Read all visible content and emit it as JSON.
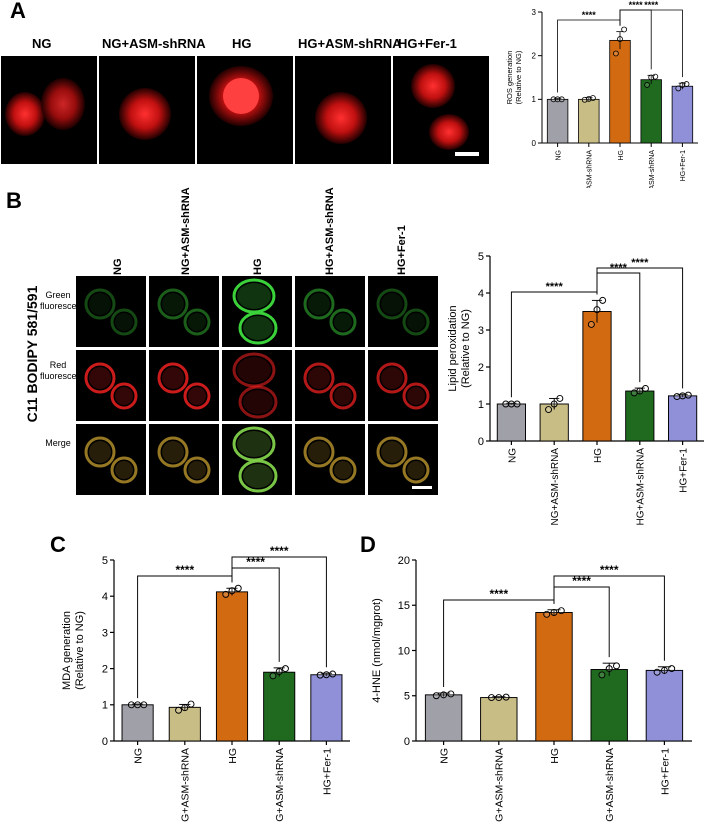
{
  "panels": {
    "a": "A",
    "b": "B",
    "c": "C",
    "d": "D"
  },
  "groups": [
    "NG",
    "NG+ASM-shRNA",
    "HG",
    "HG+ASM-shRNA",
    "HG+Fer-1"
  ],
  "colors": {
    "NG": "#a0a0a8",
    "NG+ASM-shRNA": "#c9bd86",
    "HG": "#d26a12",
    "HG+ASM-shRNA": "#1f6a1f",
    "HG+Fer-1": "#8f90d8",
    "red_fluor": "#ff2222",
    "green_fluor": "#3ad13a"
  },
  "panel_b": {
    "side_label": "C11 BODIPY 581/591",
    "rows": [
      "Green fluorescence",
      "Red fluorescence",
      "Merge"
    ]
  },
  "significance": "****",
  "chart_data": [
    {
      "id": "A",
      "type": "bar",
      "categories": [
        "NG",
        "NG+ASM-shRNA",
        "HG",
        "HG+ASM-shRNA",
        "HG+Fer-1"
      ],
      "values": [
        1.0,
        1.0,
        2.35,
        1.45,
        1.3
      ],
      "errors": [
        0.02,
        0.04,
        0.2,
        0.1,
        0.07
      ],
      "points": [
        [
          1.0,
          1.0,
          1.0
        ],
        [
          0.99,
          1.01,
          1.03
        ],
        [
          2.05,
          2.38,
          2.6
        ],
        [
          1.33,
          1.5,
          1.52
        ],
        [
          1.25,
          1.33,
          1.35
        ]
      ],
      "ylabel": "ROS generation\n(Relative to NG)",
      "ylim": [
        0,
        3
      ],
      "yticks": [
        0,
        1,
        2,
        3
      ],
      "brackets": [
        [
          "NG",
          "HG",
          "****"
        ],
        [
          "HG",
          "HG+ASM-shRNA",
          "****"
        ],
        [
          "HG",
          "HG+Fer-1",
          "****"
        ]
      ]
    },
    {
      "id": "B",
      "type": "bar",
      "categories": [
        "NG",
        "NG+ASM-shRNA",
        "HG",
        "HG+ASM-shRNA",
        "HG+Fer-1"
      ],
      "values": [
        1.0,
        1.0,
        3.5,
        1.35,
        1.22
      ],
      "errors": [
        0.02,
        0.15,
        0.3,
        0.08,
        0.04
      ],
      "points": [
        [
          1.0,
          1.0,
          1.0
        ],
        [
          0.85,
          1.0,
          1.15
        ],
        [
          3.15,
          3.55,
          3.8
        ],
        [
          1.3,
          1.35,
          1.42
        ],
        [
          1.2,
          1.22,
          1.24
        ]
      ],
      "ylabel": "Lipid peroxidation\n(Relative to NG)",
      "ylim": [
        0,
        5
      ],
      "yticks": [
        0,
        1,
        2,
        3,
        4,
        5
      ],
      "brackets": [
        [
          "NG",
          "HG",
          "****"
        ],
        [
          "HG",
          "HG+ASM-shRNA",
          "****"
        ],
        [
          "HG",
          "HG+Fer-1",
          "****"
        ]
      ]
    },
    {
      "id": "C",
      "type": "bar",
      "categories": [
        "NG",
        "NG+ASM-shRNA",
        "HG",
        "HG+ASM-shRNA",
        "HG+Fer-1"
      ],
      "values": [
        1.0,
        0.93,
        4.12,
        1.9,
        1.83
      ],
      "errors": [
        0.02,
        0.08,
        0.1,
        0.12,
        0.04
      ],
      "points": [
        [
          1.0,
          1.0,
          1.0
        ],
        [
          0.85,
          0.92,
          1.02
        ],
        [
          4.05,
          4.15,
          4.22
        ],
        [
          1.8,
          1.92,
          2.0
        ],
        [
          1.82,
          1.83,
          1.85
        ]
      ],
      "ylabel": "MDA generation\n(Relative to NG)",
      "ylim": [
        0,
        5
      ],
      "yticks": [
        0,
        1,
        2,
        3,
        4,
        5
      ],
      "brackets": [
        [
          "NG",
          "HG",
          "****"
        ],
        [
          "HG",
          "HG+ASM-shRNA",
          "****"
        ],
        [
          "HG",
          "HG+Fer-1",
          "****"
        ]
      ]
    },
    {
      "id": "D",
      "type": "bar",
      "categories": [
        "NG",
        "NG+ASM-shRNA",
        "HG",
        "HG+ASM-shRNA",
        "HG+Fer-1"
      ],
      "values": [
        5.1,
        4.8,
        14.2,
        7.9,
        7.8
      ],
      "errors": [
        0.2,
        0.1,
        0.3,
        0.7,
        0.4
      ],
      "points": [
        [
          5.0,
          5.1,
          5.2
        ],
        [
          4.8,
          4.8,
          4.85
        ],
        [
          14.0,
          14.2,
          14.4
        ],
        [
          7.3,
          8.0,
          8.3
        ],
        [
          7.6,
          7.8,
          8.0
        ]
      ],
      "ylabel": "4-HNE (nmol/mgprot)",
      "ylim": [
        0,
        20
      ],
      "yticks": [
        0,
        5,
        10,
        15,
        20
      ],
      "brackets": [
        [
          "NG",
          "HG",
          "****"
        ],
        [
          "HG",
          "HG+ASM-shRNA",
          "****"
        ],
        [
          "HG",
          "HG+Fer-1",
          "****"
        ]
      ]
    }
  ]
}
